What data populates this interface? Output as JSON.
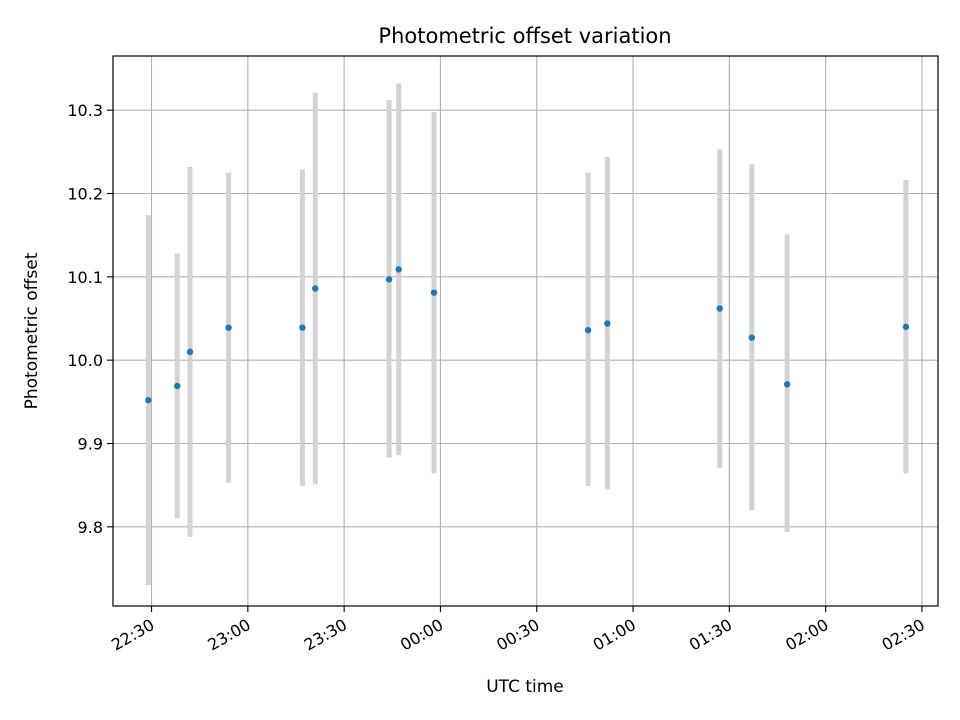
{
  "chart_data": {
    "type": "scatter",
    "title": "Photometric offset variation",
    "xlabel": "UTC time",
    "ylabel": "Photometric offset",
    "x_unit": "UTC time of day (HH:MM)",
    "xlim": [
      "22:18",
      "02:35"
    ],
    "ylim": [
      9.705,
      10.365
    ],
    "x_ticks": [
      "22:30",
      "23:00",
      "23:30",
      "00:00",
      "00:30",
      "01:00",
      "01:30",
      "02:00",
      "02:30"
    ],
    "y_ticks": [
      "9.8",
      "9.9",
      "10.0",
      "10.1",
      "10.2",
      "10.3"
    ],
    "y_tick_values": [
      9.8,
      9.9,
      10.0,
      10.1,
      10.2,
      10.3
    ],
    "grid": true,
    "legend": "none",
    "point_color": "#1f77b4",
    "errorbar_color": "#d3d3d3",
    "points": [
      {
        "x": "22:29",
        "y": 9.952,
        "ylow": 9.73,
        "yhigh": 10.174
      },
      {
        "x": "22:38",
        "y": 9.969,
        "ylow": 9.81,
        "yhigh": 10.128
      },
      {
        "x": "22:42",
        "y": 10.01,
        "ylow": 9.788,
        "yhigh": 10.232
      },
      {
        "x": "22:54",
        "y": 10.039,
        "ylow": 9.853,
        "yhigh": 10.225
      },
      {
        "x": "23:17",
        "y": 10.039,
        "ylow": 9.849,
        "yhigh": 10.229
      },
      {
        "x": "23:21",
        "y": 10.086,
        "ylow": 9.851,
        "yhigh": 10.321
      },
      {
        "x": "23:44",
        "y": 10.097,
        "ylow": 9.883,
        "yhigh": 10.312
      },
      {
        "x": "23:47",
        "y": 10.109,
        "ylow": 9.886,
        "yhigh": 10.332
      },
      {
        "x": "23:58",
        "y": 10.081,
        "ylow": 9.864,
        "yhigh": 10.298
      },
      {
        "x": "00:46",
        "y": 10.036,
        "ylow": 9.849,
        "yhigh": 10.225
      },
      {
        "x": "00:52",
        "y": 10.044,
        "ylow": 9.845,
        "yhigh": 10.244
      },
      {
        "x": "01:27",
        "y": 10.062,
        "ylow": 9.871,
        "yhigh": 10.253
      },
      {
        "x": "01:37",
        "y": 10.027,
        "ylow": 9.82,
        "yhigh": 10.235
      },
      {
        "x": "01:48",
        "y": 9.971,
        "ylow": 9.794,
        "yhigh": 10.151
      },
      {
        "x": "02:25",
        "y": 10.04,
        "ylow": 9.864,
        "yhigh": 10.216
      }
    ]
  }
}
